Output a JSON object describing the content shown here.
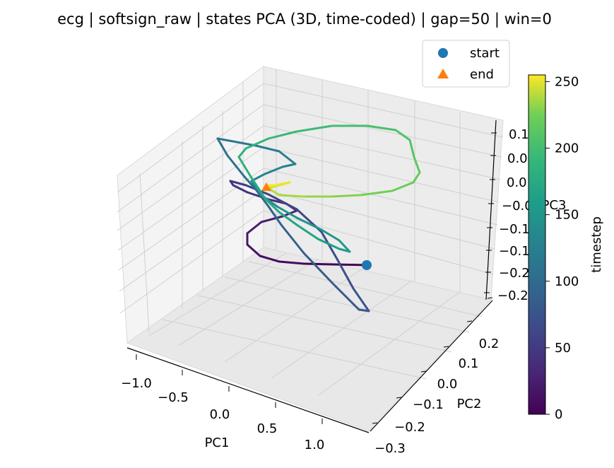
{
  "chart_data": {
    "type": "line",
    "subtype": "3d-trajectory",
    "title": "ecg | softsign_raw | states PCA (3D, time-coded) | gap=50 | win=0",
    "xlabel": "PC1",
    "ylabel": "PC2",
    "zlabel": "PC3",
    "xlim": [
      -1.15,
      1.15
    ],
    "ylim": [
      -0.32,
      0.28
    ],
    "zlim": [
      -0.28,
      0.16
    ],
    "x_ticks": [
      "−1.0",
      "−0.5",
      "0.0",
      "0.5",
      "1.0"
    ],
    "y_ticks": [
      "−0.3",
      "−0.2",
      "−0.1",
      "0.0",
      "0.1",
      "0.2"
    ],
    "z_ticks": [
      "0.1",
      "0.0",
      "0.0",
      "−0.0",
      "−0.1",
      "−0.1",
      "−0.2",
      "−0.2"
    ],
    "colormap": "viridis",
    "color_by": "timestep",
    "colorbar": {
      "label": "timestep",
      "min": 0,
      "max": 255,
      "ticks": [
        "0",
        "50",
        "100",
        "150",
        "200",
        "250"
      ]
    },
    "legend": {
      "placement": "top-right",
      "entries": [
        {
          "label": "start",
          "marker": "circle",
          "color": "#1f77b4"
        },
        {
          "label": "end",
          "marker": "triangle",
          "color": "#ff7f0e"
        }
      ]
    },
    "grid": true,
    "colors": {
      "start": "#1f77b4",
      "end": "#ff7f0e",
      "pane": "#f2f2f2",
      "grid": "#cfcfcf"
    },
    "key_points": {
      "start": {
        "t": 0,
        "pc1": 0.95,
        "pc2": -0.05,
        "pc3": -0.12
      },
      "end": {
        "t": 255,
        "pc1": -0.22,
        "pc2": 0.05,
        "pc3": 0.0
      }
    }
  }
}
